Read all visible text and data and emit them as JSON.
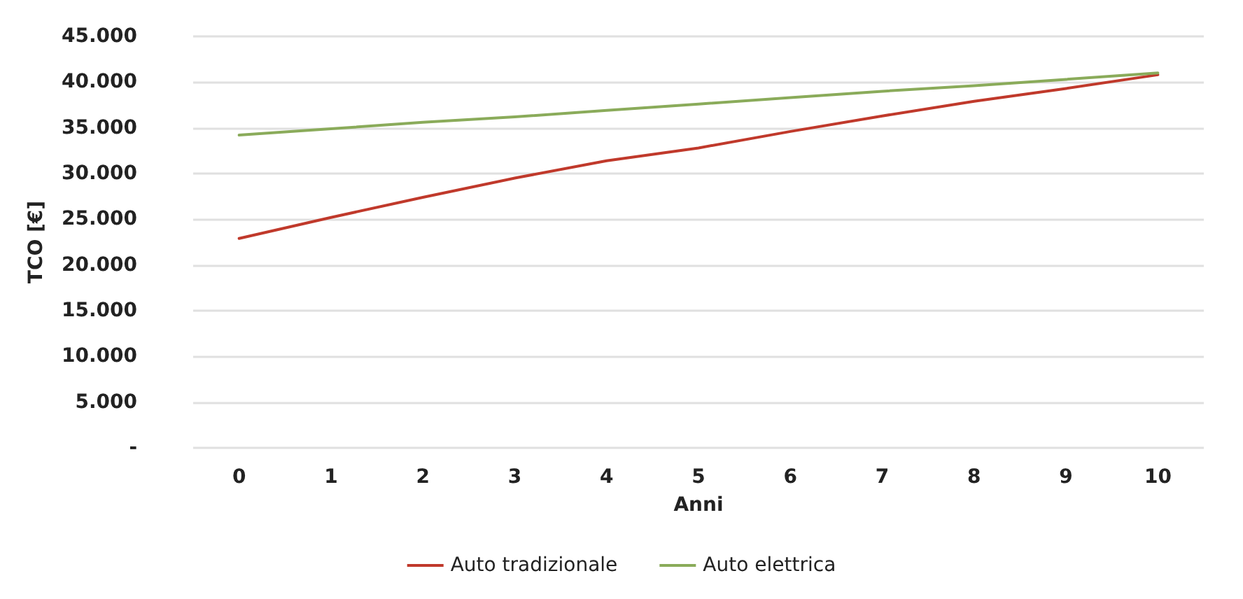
{
  "chart_data": {
    "type": "line",
    "xlabel": "Anni",
    "ylabel": "TCO [€]",
    "categories": [
      "0",
      "1",
      "2",
      "3",
      "4",
      "5",
      "6",
      "7",
      "8",
      "9",
      "10"
    ],
    "series": [
      {
        "name": "Auto tradizionale",
        "color": "#c0392b",
        "values": [
          22900,
          25200,
          27400,
          29500,
          31400,
          32800,
          34600,
          36300,
          37900,
          39300,
          40800
        ]
      },
      {
        "name": "Auto elettrica",
        "color": "#8aab5a",
        "values": [
          34200,
          34900,
          35600,
          36200,
          36900,
          37600,
          38300,
          39000,
          39600,
          40300,
          41000
        ]
      }
    ],
    "ylim": [
      0,
      45000
    ],
    "yticks": [
      {
        "value": 0,
        "label": "-"
      },
      {
        "value": 5000,
        "label": "5.000"
      },
      {
        "value": 10000,
        "label": "10.000"
      },
      {
        "value": 15000,
        "label": "15.000"
      },
      {
        "value": 20000,
        "label": "20.000"
      },
      {
        "value": 25000,
        "label": "25.000"
      },
      {
        "value": 30000,
        "label": "30.000"
      },
      {
        "value": 35000,
        "label": "35.000"
      },
      {
        "value": 40000,
        "label": "40.000"
      },
      {
        "value": 45000,
        "label": "45.000"
      }
    ],
    "grid": "y",
    "legend": "bottom",
    "marker": "none",
    "line_style": "solid"
  }
}
